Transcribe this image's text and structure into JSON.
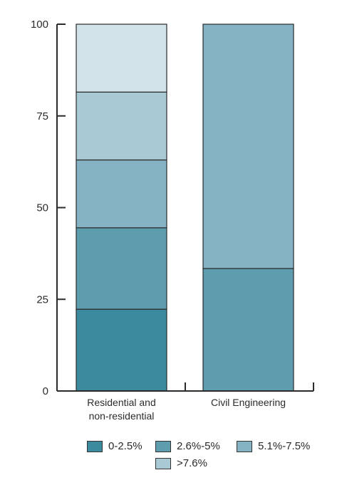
{
  "chart_data": {
    "type": "bar",
    "stacked": true,
    "categories": [
      "Residential and non-residential",
      "Civil Engineering"
    ],
    "category_lines": [
      [
        "Residential and",
        "non-residential"
      ],
      [
        "Civil Engineering"
      ]
    ],
    "ylim": [
      0,
      100
    ],
    "yticks": [
      0,
      25,
      50,
      75,
      100
    ],
    "series": [
      {
        "name": "0-2.5%",
        "color": "#3b8a9e",
        "values": [
          22.3,
          0
        ]
      },
      {
        "name": "2.6%-5%",
        "color": "#5e9dae",
        "values": [
          22.2,
          33.4
        ]
      },
      {
        "name": "5.1%-7.5%",
        "color": "#86b3c3",
        "values": [
          18.5,
          66.6
        ]
      },
      {
        "name": ">7.6%",
        "color": "#a9c9d5",
        "values": [
          18.5,
          0
        ]
      },
      {
        "name": "",
        "color": "#d1e2e9",
        "values": [
          18.5,
          0
        ]
      }
    ],
    "legend": {
      "placement": "bottom",
      "items": [
        {
          "label": "0-2.5%",
          "color": "#3b8a9e"
        },
        {
          "label": "2.6%-5%",
          "color": "#5e9dae"
        },
        {
          "label": "5.1%-7.5%",
          "color": "#86b3c3"
        },
        {
          "label": ">7.6%",
          "color": "#a9c9d5"
        }
      ]
    },
    "grid": false
  }
}
